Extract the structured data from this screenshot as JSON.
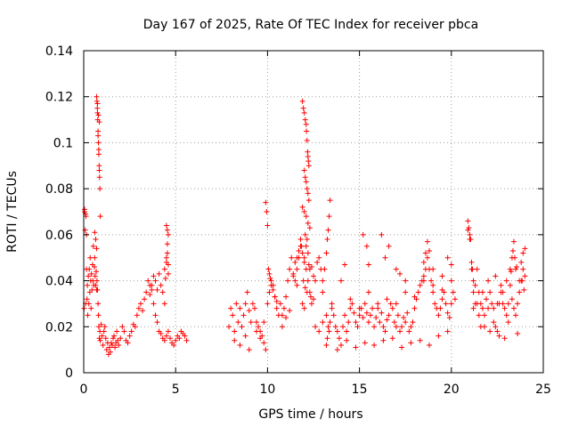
{
  "chart_data": {
    "type": "scatter",
    "title": "Day 167 of 2025, Rate Of TEC Index for receiver pbca",
    "xlabel": "GPS time / hours",
    "ylabel": "ROTI / TECUs",
    "xlim": [
      0,
      25
    ],
    "ylim": [
      0,
      0.14
    ],
    "xticks": [
      "0",
      "5",
      "10",
      "15",
      "20",
      "25"
    ],
    "yticks": [
      "0",
      "0.02",
      "0.04",
      "0.06",
      "0.08",
      "0.1",
      "0.12",
      "0.14"
    ],
    "grid": true,
    "marker": "plus",
    "series": [
      {
        "name": "ROTI",
        "color": "#ff0000",
        "x": [
          0.02,
          0.05,
          0.08,
          0.1,
          0.12,
          0.15,
          0.18,
          0.2,
          0.22,
          0.25,
          0.28,
          0.3,
          0.33,
          0.35,
          0.38,
          0.4,
          0.42,
          0.45,
          0.48,
          0.5,
          0.52,
          0.55,
          0.58,
          0.6,
          0.62,
          0.65,
          0.68,
          0.7,
          0.72,
          0.75,
          0.78,
          0.8,
          0.82,
          0.85,
          0.88,
          0.9,
          0.95,
          1.0,
          1.05,
          1.1,
          1.15,
          1.2,
          1.25,
          1.3,
          1.35,
          1.4,
          1.45,
          1.5,
          1.55,
          1.6,
          1.65,
          1.7,
          1.75,
          1.8,
          1.85,
          1.9,
          2.0,
          2.1,
          2.2,
          2.3,
          2.4,
          2.5,
          2.6,
          2.7,
          2.8,
          2.9,
          3.0,
          3.1,
          3.2,
          3.3,
          3.4,
          3.5,
          3.6,
          3.7,
          3.8,
          3.9,
          4.0,
          4.1,
          4.2,
          4.3,
          4.4,
          4.5,
          4.6,
          4.7,
          4.8,
          4.9,
          5.0,
          5.1,
          5.2,
          5.3,
          5.4,
          5.5,
          5.6,
          0.05,
          0.1,
          0.15,
          0.7,
          0.72,
          0.74,
          0.75,
          0.76,
          0.78,
          0.8,
          0.82,
          0.84,
          0.85,
          0.86,
          0.88,
          0.9,
          0.75,
          0.8,
          0.85,
          0.78,
          0.82,
          0.6,
          0.65,
          0.7,
          3.6,
          3.7,
          3.8,
          3.9,
          4.0,
          4.1,
          4.2,
          4.3,
          4.4,
          4.5,
          4.55,
          4.6,
          4.5,
          4.55,
          4.6,
          4.4,
          4.5,
          4.6,
          4.45,
          4.55,
          7.9,
          8.0,
          8.1,
          8.2,
          8.3,
          8.4,
          8.5,
          8.6,
          8.7,
          8.8,
          8.9,
          9.0,
          9.1,
          9.2,
          9.3,
          9.4,
          9.5,
          9.6,
          9.7,
          9.8,
          9.9,
          10.0,
          10.1,
          10.2,
          10.3,
          10.4,
          10.5,
          10.6,
          10.7,
          10.8,
          10.9,
          11.0,
          11.1,
          11.2,
          11.3,
          11.4,
          11.5,
          11.6,
          11.7,
          11.8,
          11.9,
          12.0,
          12.1,
          12.2,
          12.3,
          12.4,
          12.5,
          12.6,
          12.7,
          12.8,
          12.9,
          13.0,
          8.2,
          8.5,
          8.8,
          9.0,
          9.4,
          9.6,
          9.8,
          9.9,
          9.95,
          10.0,
          10.05,
          10.1,
          10.15,
          10.2,
          10.3,
          10.4,
          10.5,
          10.8,
          11.0,
          11.2,
          11.4,
          11.6,
          11.9,
          11.95,
          12.0,
          12.05,
          12.1,
          12.12,
          12.15,
          12.18,
          12.2,
          12.22,
          12.25,
          12.0,
          12.05,
          12.1,
          12.15,
          12.2,
          12.25,
          11.9,
          12.0,
          12.1,
          12.2,
          12.3,
          12.05,
          12.15,
          12.1,
          12.2,
          12.0,
          12.25,
          12.3,
          11.8,
          11.85,
          11.7,
          11.6,
          11.5,
          12.4,
          12.5,
          11.95,
          12.05,
          12.15,
          12.35,
          11.9,
          12.0,
          12.6,
          12.8,
          13.0,
          13.2,
          13.25,
          13.3,
          13.35,
          13.4,
          13.5,
          13.6,
          13.7,
          13.8,
          13.9,
          14.0,
          14.1,
          14.2,
          14.3,
          14.4,
          14.5,
          14.6,
          14.7,
          14.8,
          14.9,
          15.0,
          15.1,
          15.2,
          15.3,
          15.4,
          15.5,
          15.6,
          15.7,
          15.8,
          15.9,
          16.0,
          16.1,
          16.2,
          16.3,
          16.4,
          16.5,
          16.6,
          16.7,
          16.8,
          16.9,
          17.0,
          17.1,
          17.2,
          17.3,
          17.4,
          17.5,
          17.6,
          17.7,
          17.8,
          17.9,
          18.0,
          18.1,
          18.2,
          18.3,
          18.4,
          18.5,
          18.6,
          18.7,
          18.8,
          18.9,
          19.0,
          19.1,
          19.2,
          19.3,
          19.4,
          19.5,
          19.6,
          19.7,
          19.8,
          19.9,
          20.0,
          20.1,
          20.2,
          13.0,
          13.5,
          14.0,
          14.5,
          15.0,
          15.5,
          16.0,
          16.5,
          17.0,
          17.5,
          18.0,
          18.5,
          19.0,
          19.5,
          20.0,
          13.2,
          13.8,
          14.3,
          14.8,
          15.3,
          15.8,
          16.3,
          16.8,
          17.3,
          17.8,
          18.3,
          18.8,
          19.3,
          19.8,
          13.1,
          13.2,
          13.3,
          13.4,
          13.35,
          13.25,
          14.2,
          15.2,
          15.4,
          15.5,
          16.2,
          16.4,
          16.6,
          17.0,
          17.2,
          17.5,
          18.5,
          18.6,
          18.7,
          18.8,
          19.0,
          19.5,
          19.8,
          20.0,
          20.9,
          21.0,
          21.1,
          21.2,
          21.3,
          21.4,
          21.5,
          21.6,
          21.7,
          21.8,
          21.9,
          22.0,
          22.1,
          22.2,
          22.3,
          22.4,
          22.5,
          22.6,
          22.7,
          22.8,
          22.9,
          23.0,
          23.1,
          23.2,
          23.3,
          23.4,
          23.5,
          23.6,
          23.7,
          23.8,
          23.9,
          24.0,
          20.9,
          20.95,
          21.0,
          21.05,
          21.1,
          21.15,
          21.2,
          21.3,
          21.5,
          21.8,
          22.0,
          22.3,
          22.5,
          22.8,
          23.0,
          23.2,
          23.3,
          23.35,
          23.4,
          23.45,
          23.5,
          23.7,
          23.8,
          23.9,
          24.0,
          21.4,
          21.6,
          22.1,
          22.6,
          22.9,
          23.1,
          23.6,
          21.2,
          21.7,
          22.4,
          22.7,
          23.25,
          23.55,
          23.85,
          23.95
        ],
        "y": [
          0.028,
          0.07,
          0.062,
          0.03,
          0.068,
          0.045,
          0.032,
          0.038,
          0.025,
          0.042,
          0.03,
          0.045,
          0.035,
          0.05,
          0.04,
          0.028,
          0.043,
          0.036,
          0.047,
          0.04,
          0.055,
          0.038,
          0.046,
          0.05,
          0.042,
          0.038,
          0.044,
          0.036,
          0.04,
          0.036,
          0.03,
          0.025,
          0.02,
          0.015,
          0.018,
          0.014,
          0.021,
          0.016,
          0.012,
          0.018,
          0.02,
          0.015,
          0.01,
          0.013,
          0.008,
          0.011,
          0.009,
          0.013,
          0.012,
          0.015,
          0.016,
          0.011,
          0.013,
          0.018,
          0.014,
          0.012,
          0.015,
          0.02,
          0.018,
          0.014,
          0.013,
          0.016,
          0.018,
          0.021,
          0.02,
          0.025,
          0.028,
          0.03,
          0.027,
          0.032,
          0.035,
          0.04,
          0.038,
          0.036,
          0.03,
          0.025,
          0.022,
          0.018,
          0.017,
          0.015,
          0.014,
          0.016,
          0.018,
          0.015,
          0.013,
          0.012,
          0.014,
          0.016,
          0.015,
          0.018,
          0.017,
          0.016,
          0.014,
          0.071,
          0.069,
          0.06,
          0.12,
          0.118,
          0.115,
          0.113,
          0.11,
          0.105,
          0.1,
          0.097,
          0.09,
          0.088,
          0.085,
          0.08,
          0.068,
          0.117,
          0.112,
          0.109,
          0.103,
          0.095,
          0.061,
          0.058,
          0.054,
          0.034,
          0.038,
          0.042,
          0.04,
          0.036,
          0.043,
          0.038,
          0.035,
          0.03,
          0.05,
          0.056,
          0.06,
          0.064,
          0.062,
          0.047,
          0.045,
          0.048,
          0.043,
          0.041,
          0.052,
          0.02,
          0.028,
          0.025,
          0.018,
          0.03,
          0.022,
          0.028,
          0.02,
          0.025,
          0.03,
          0.035,
          0.027,
          0.022,
          0.03,
          0.028,
          0.022,
          0.02,
          0.018,
          0.016,
          0.013,
          0.01,
          0.03,
          0.035,
          0.04,
          0.038,
          0.033,
          0.028,
          0.025,
          0.03,
          0.025,
          0.028,
          0.033,
          0.04,
          0.045,
          0.05,
          0.043,
          0.04,
          0.045,
          0.05,
          0.055,
          0.052,
          0.048,
          0.045,
          0.04,
          0.035,
          0.03,
          0.032,
          0.04,
          0.048,
          0.05,
          0.045,
          0.04,
          0.014,
          0.012,
          0.016,
          0.01,
          0.018,
          0.015,
          0.022,
          0.074,
          0.07,
          0.064,
          0.045,
          0.043,
          0.041,
          0.038,
          0.036,
          0.033,
          0.031,
          0.02,
          0.024,
          0.027,
          0.042,
          0.038,
          0.118,
          0.115,
          0.113,
          0.11,
          0.108,
          0.105,
          0.101,
          0.096,
          0.094,
          0.092,
          0.09,
          0.088,
          0.085,
          0.083,
          0.08,
          0.078,
          0.075,
          0.072,
          0.07,
          0.068,
          0.065,
          0.063,
          0.06,
          0.058,
          0.055,
          0.052,
          0.05,
          0.047,
          0.045,
          0.058,
          0.055,
          0.053,
          0.05,
          0.048,
          0.046,
          0.042,
          0.04,
          0.037,
          0.035,
          0.033,
          0.03,
          0.028,
          0.02,
          0.018,
          0.022,
          0.025,
          0.015,
          0.02,
          0.018,
          0.022,
          0.028,
          0.025,
          0.02,
          0.018,
          0.015,
          0.012,
          0.02,
          0.025,
          0.018,
          0.022,
          0.028,
          0.03,
          0.026,
          0.022,
          0.02,
          0.025,
          0.028,
          0.024,
          0.03,
          0.026,
          0.022,
          0.025,
          0.028,
          0.02,
          0.024,
          0.028,
          0.022,
          0.026,
          0.02,
          0.018,
          0.023,
          0.025,
          0.03,
          0.028,
          0.022,
          0.02,
          0.025,
          0.018,
          0.02,
          0.024,
          0.022,
          0.026,
          0.018,
          0.02,
          0.022,
          0.028,
          0.032,
          0.035,
          0.038,
          0.04,
          0.042,
          0.045,
          0.05,
          0.045,
          0.04,
          0.035,
          0.03,
          0.028,
          0.025,
          0.028,
          0.032,
          0.035,
          0.03,
          0.026,
          0.024,
          0.03,
          0.035,
          0.032,
          0.035,
          0.03,
          0.04,
          0.032,
          0.028,
          0.035,
          0.03,
          0.032,
          0.03,
          0.035,
          0.033,
          0.04,
          0.038,
          0.036,
          0.04,
          0.012,
          0.01,
          0.014,
          0.011,
          0.013,
          0.012,
          0.014,
          0.015,
          0.011,
          0.013,
          0.014,
          0.012,
          0.016,
          0.018,
          0.045,
          0.052,
          0.062,
          0.075,
          0.068,
          0.058,
          0.047,
          0.06,
          0.055,
          0.047,
          0.06,
          0.05,
          0.055,
          0.045,
          0.043,
          0.04,
          0.048,
          0.052,
          0.057,
          0.053,
          0.045,
          0.042,
          0.05,
          0.047,
          0.062,
          0.058,
          0.045,
          0.04,
          0.038,
          0.045,
          0.035,
          0.03,
          0.028,
          0.025,
          0.032,
          0.04,
          0.035,
          0.03,
          0.028,
          0.02,
          0.018,
          0.03,
          0.035,
          0.03,
          0.028,
          0.025,
          0.03,
          0.038,
          0.032,
          0.028,
          0.025,
          0.03,
          0.035,
          0.04,
          0.045,
          0.042,
          0.066,
          0.063,
          0.06,
          0.058,
          0.048,
          0.045,
          0.035,
          0.03,
          0.025,
          0.02,
          0.028,
          0.022,
          0.03,
          0.035,
          0.04,
          0.045,
          0.05,
          0.053,
          0.057,
          0.05,
          0.045,
          0.04,
          0.048,
          0.052,
          0.054,
          0.03,
          0.02,
          0.018,
          0.016,
          0.015,
          0.022,
          0.017,
          0.028,
          0.035,
          0.042,
          0.038,
          0.044,
          0.046,
          0.04,
          0.036
        ]
      }
    ]
  }
}
